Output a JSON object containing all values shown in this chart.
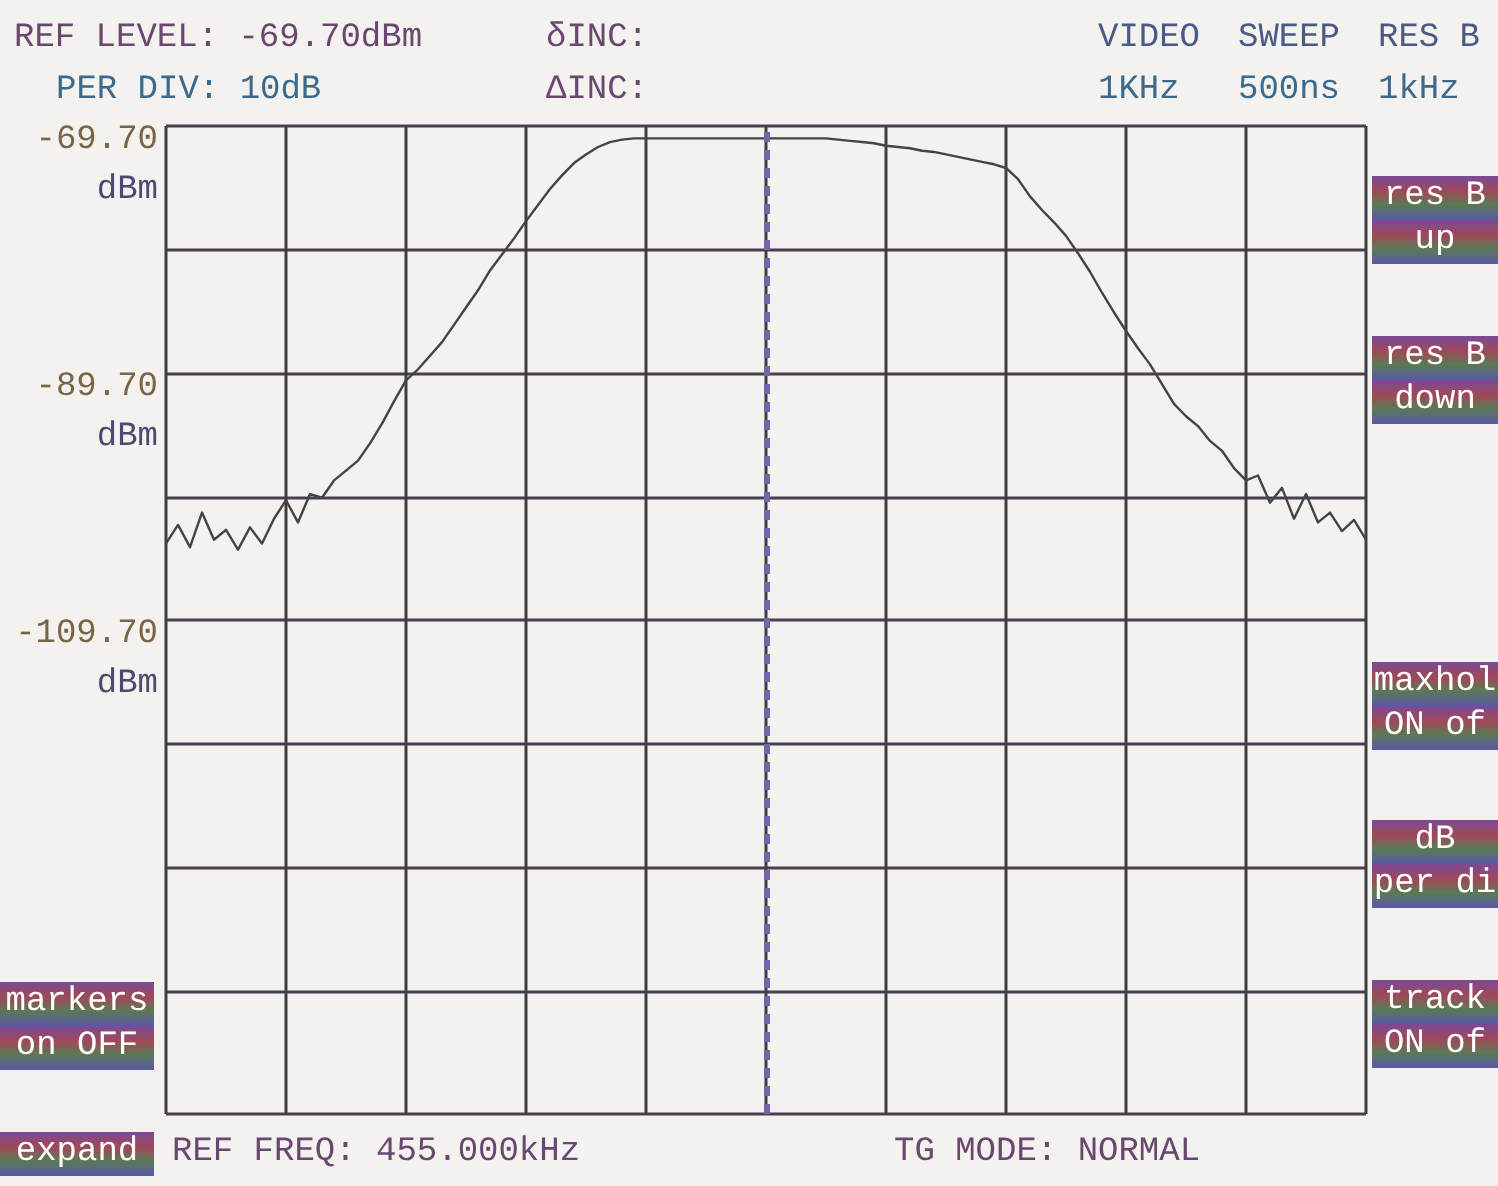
{
  "chart_data": {
    "type": "line",
    "annotations": [
      "REF LEVEL: -69.70dBm",
      "δINC:",
      "VIDEO",
      "SWEEP",
      "RES B",
      "PER DIV: 10dB",
      "ΔINC:",
      "1KHz",
      "500ns",
      "1kHz",
      "REF FREQ: 455.000kHz",
      "TG MODE: NORMAL",
      "res B",
      "up",
      "res B",
      "down",
      "maxhol",
      "ON of",
      "dB",
      "per di",
      "track",
      "ON of",
      "markers",
      "on OFF",
      "expand"
    ],
    "categories": [
      null,
      null,
      null,
      null,
      null,
      null,
      null,
      null,
      null,
      null,
      null,
      null,
      null,
      null,
      null,
      null,
      null,
      null,
      null,
      null,
      null,
      null,
      null,
      null,
      null,
      null,
      null,
      null,
      null,
      null,
      null,
      null,
      null,
      null,
      null,
      null,
      null,
      null,
      null,
      null,
      null,
      null,
      null,
      null,
      null,
      null,
      null,
      null,
      null,
      null,
      null,
      null,
      null,
      null,
      null,
      null,
      null,
      null,
      null,
      null,
      null,
      null,
      null,
      null,
      null,
      null,
      null,
      null,
      null,
      null,
      null,
      null,
      null,
      null,
      null,
      null,
      null,
      null,
      null,
      null,
      null,
      null,
      null,
      null,
      null,
      null,
      null,
      null,
      null,
      null,
      null,
      null,
      null,
      null,
      null,
      null,
      null,
      null,
      null,
      null,
      null
    ],
    "values": [
      -103.5,
      -102.0,
      -103.8,
      -101.0,
      -103.2,
      -102.4,
      -104.0,
      -102.2,
      -103.5,
      -101.5,
      -100.0,
      -101.8,
      -99.5,
      -99.8,
      -98.4,
      -97.6,
      -96.8,
      -95.4,
      -93.8,
      -92.0,
      -90.3,
      -89.4,
      -88.3,
      -87.2,
      -85.8,
      -84.4,
      -83.0,
      -81.4,
      -80.1,
      -78.8,
      -77.4,
      -76.1,
      -74.8,
      -73.7,
      -72.7,
      -72.0,
      -71.4,
      -71.0,
      -70.8,
      -70.7,
      -70.7,
      -70.7,
      -70.7,
      -70.7,
      -70.7,
      -70.7,
      -70.7,
      -70.7,
      -70.7,
      -70.7,
      -70.7,
      -70.7,
      -70.7,
      -70.7,
      -70.7,
      -70.7,
      -70.8,
      -70.9,
      -71.0,
      -71.1,
      -71.3,
      -71.4,
      -71.5,
      -71.7,
      -71.8,
      -72.0,
      -72.2,
      -72.4,
      -72.6,
      -72.8,
      -73.1,
      -74.0,
      -75.4,
      -76.5,
      -77.5,
      -78.6,
      -80.0,
      -81.5,
      -83.2,
      -84.8,
      -86.3,
      -87.7,
      -89.0,
      -90.6,
      -92.2,
      -93.2,
      -94.0,
      -95.2,
      -96.0,
      -97.4,
      -98.4,
      -98.0,
      -100.2,
      -99.0,
      -101.5,
      -99.5,
      -101.8,
      -101.0,
      -102.5,
      -101.6,
      -103.2
    ],
    "color": "#444444",
    "ylim": [
      -149.7,
      -69.7
    ],
    "yticks": [
      {
        "value": -69.7,
        "label": "-69.70 dBm"
      },
      {
        "value": -79.7,
        "label": null
      },
      {
        "value": -89.7,
        "label": "-89.70 dBm"
      },
      {
        "value": -99.7,
        "label": null
      },
      {
        "value": -109.7,
        "label": "-109.70 dBm"
      },
      {
        "value": -119.7,
        "label": null
      },
      {
        "value": -129.7,
        "label": null
      },
      {
        "value": -139.7,
        "label": null
      },
      {
        "value": -149.7,
        "label": null
      }
    ],
    "grid": true,
    "tick_labels": "y"
  }
}
